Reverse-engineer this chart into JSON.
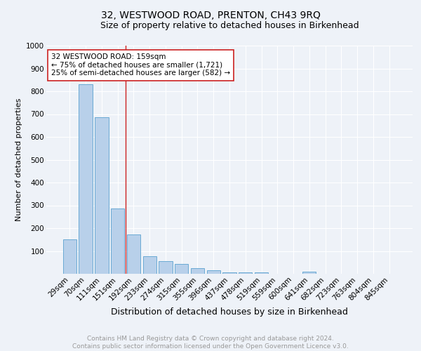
{
  "title": "32, WESTWOOD ROAD, PRENTON, CH43 9RQ",
  "subtitle": "Size of property relative to detached houses in Birkenhead",
  "xlabel": "Distribution of detached houses by size in Birkenhead",
  "ylabel": "Number of detached properties",
  "categories": [
    "29sqm",
    "70sqm",
    "111sqm",
    "151sqm",
    "192sqm",
    "233sqm",
    "274sqm",
    "315sqm",
    "355sqm",
    "396sqm",
    "437sqm",
    "478sqm",
    "519sqm",
    "559sqm",
    "600sqm",
    "641sqm",
    "682sqm",
    "723sqm",
    "763sqm",
    "804sqm",
    "845sqm"
  ],
  "values": [
    150,
    830,
    685,
    285,
    173,
    78,
    55,
    42,
    25,
    14,
    5,
    5,
    5,
    0,
    0,
    10,
    0,
    0,
    0,
    0,
    0
  ],
  "bar_color": "#b8d0ea",
  "bar_edge_color": "#6aaad4",
  "vline_x": 3.5,
  "vline_color": "#cc2222",
  "annotation_text": "32 WESTWOOD ROAD: 159sqm\n← 75% of detached houses are smaller (1,721)\n25% of semi-detached houses are larger (582) →",
  "annotation_box_color": "#ffffff",
  "annotation_box_edge_color": "#cc2222",
  "ylim": [
    0,
    1000
  ],
  "yticks": [
    0,
    100,
    200,
    300,
    400,
    500,
    600,
    700,
    800,
    900,
    1000
  ],
  "footer_line1": "Contains HM Land Registry data © Crown copyright and database right 2024.",
  "footer_line2": "Contains public sector information licensed under the Open Government Licence v3.0.",
  "background_color": "#eef2f8",
  "plot_background": "#eef2f8",
  "grid_color": "#ffffff",
  "title_fontsize": 10,
  "subtitle_fontsize": 9,
  "xlabel_fontsize": 9,
  "ylabel_fontsize": 8,
  "tick_fontsize": 7.5,
  "footer_fontsize": 6.5,
  "ann_fontsize": 7.5
}
